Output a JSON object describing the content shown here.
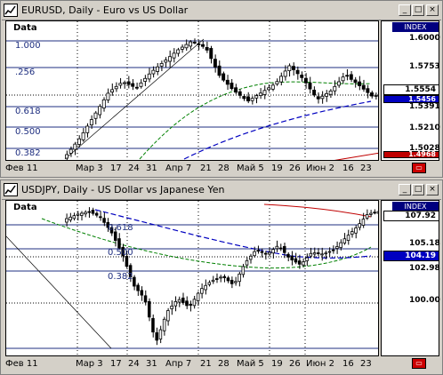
{
  "top": {
    "title": "EURUSD, Daily - Euro vs US Dollar",
    "data_label": "Data",
    "index_label": "INDEX",
    "fib_labels": [
      "1.000",
      "0.618",
      "0.500",
      "0.382"
    ],
    "fib_256": ".256",
    "price_labels": [
      "1.6000",
      "1.5753",
      "1.5554",
      "1.5456",
      "1.5391",
      "1.5210",
      "1.5028",
      "1.4968"
    ],
    "current_price": "1.5554",
    "dates": [
      "Фев 11",
      "Мар 3",
      "17",
      "24",
      "31",
      "Апр 7",
      "21",
      "28",
      "Май 5",
      "19",
      "26",
      "Июн 2",
      "16",
      "23"
    ]
  },
  "bottom": {
    "title": "USDJPY, Daily - US Dollar vs Japanese Yen",
    "data_label": "Data",
    "index_label": "INDEX",
    "fib_labels": [
      "0.618",
      "0.500",
      "0.382"
    ],
    "price_labels": [
      "107.92",
      "105.18",
      "104.19",
      "102.98",
      "100.00"
    ],
    "current_price": "107.92",
    "dates": [
      "Фев 11",
      "Мар 3",
      "17",
      "24",
      "31",
      "Апр 7",
      "21",
      "28",
      "Май 5",
      "19",
      "26",
      "Июн 2",
      "16",
      "23"
    ]
  },
  "window_buttons": {
    "minimize": "_",
    "maximize": "□",
    "close": "×"
  },
  "colors": {
    "background": "#d4d0c8",
    "candle_up": "#ffffff",
    "candle_down": "#000000",
    "fib_lines": "#1f2f80",
    "ma_green": "#008000",
    "trend_blue": "#0000c0",
    "trend_red": "#c00000"
  }
}
